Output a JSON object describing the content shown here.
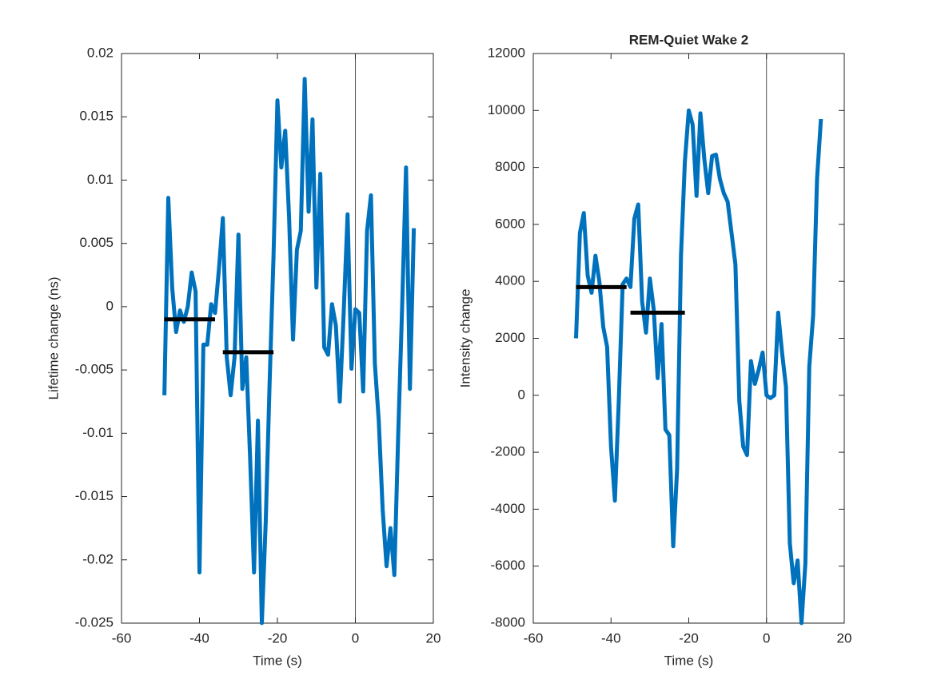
{
  "chart_data": [
    {
      "type": "line",
      "xlabel": "Time (s)",
      "ylabel": "Lifetime change (ns)",
      "xlim": [
        -60,
        20
      ],
      "xticks": [
        -60,
        -40,
        -20,
        0,
        20
      ],
      "ylim": [
        -0.025,
        0.02
      ],
      "yticks": [
        -0.025,
        -0.02,
        -0.015,
        -0.01,
        -0.005,
        0,
        0.005,
        0.01,
        0.015,
        0.02
      ],
      "color": "#0072bd",
      "x": [
        -49,
        -48,
        -47,
        -46,
        -45,
        -44,
        -43,
        -42,
        -41,
        -40,
        -39,
        -38,
        -37,
        -36,
        -35,
        -34,
        -33,
        -32,
        -31,
        -30,
        -29,
        -28,
        -27,
        -26,
        -25,
        -24,
        -23,
        -22,
        -21,
        -20,
        -19,
        -18,
        -17,
        -16,
        -15,
        -14,
        -13,
        -12,
        -11,
        -10,
        -9,
        -8,
        -7,
        -6,
        -5,
        -4,
        -3,
        -2,
        -1,
        0,
        1,
        2,
        3,
        4,
        5,
        6,
        7,
        8,
        9,
        10,
        11,
        12,
        13,
        14,
        15
      ],
      "values": [
        -0.007,
        0.0086,
        0.0015,
        -0.002,
        -0.0003,
        -0.0012,
        0,
        0.0027,
        0.0012,
        -0.021,
        -0.003,
        -0.003,
        0.0002,
        -0.0005,
        0.003,
        0.007,
        -0.004,
        -0.007,
        -0.004,
        0.0057,
        -0.0065,
        -0.004,
        -0.012,
        -0.021,
        -0.009,
        -0.025,
        -0.017,
        -0.006,
        0.004,
        0.0163,
        0.011,
        0.0139,
        0.007,
        -0.0026,
        0.0045,
        0.006,
        0.018,
        0.0075,
        0.0148,
        0.0015,
        0.0105,
        -0.0032,
        -0.0038,
        0.0002,
        -0.0015,
        -0.0075,
        -0.0005,
        0.0073,
        -0.0049,
        -0.0002,
        -0.0005,
        -0.0067,
        0.006,
        0.0088,
        -0.0045,
        -0.009,
        -0.016,
        -0.0205,
        -0.0175,
        -0.0212,
        -0.01,
        0,
        0.011,
        -0.0065,
        0.0062
      ],
      "segments": [
        {
          "x0": -49,
          "x1": -36,
          "y": -0.001
        },
        {
          "x0": -34,
          "x1": -21,
          "y": -0.0036
        }
      ],
      "segment_color": "#000000",
      "vlines": [
        0
      ]
    },
    {
      "type": "line",
      "title": "REM-Quiet Wake 2",
      "xlabel": "Time (s)",
      "ylabel": "Intensity change",
      "xlim": [
        -60,
        20
      ],
      "xticks": [
        -60,
        -40,
        -20,
        0,
        20
      ],
      "ylim": [
        -8000,
        12000
      ],
      "yticks": [
        -8000,
        -6000,
        -4000,
        -2000,
        0,
        2000,
        4000,
        6000,
        8000,
        10000,
        12000
      ],
      "color": "#0072bd",
      "x": [
        -49,
        -48,
        -47,
        -46,
        -45,
        -44,
        -43,
        -42,
        -41,
        -40,
        -39,
        -38,
        -37,
        -36,
        -35,
        -34,
        -33,
        -32,
        -31,
        -30,
        -29,
        -28,
        -27,
        -26,
        -25,
        -24,
        -23,
        -22,
        -21,
        -20,
        -19,
        -18,
        -17,
        -16,
        -15,
        -14,
        -13,
        -12,
        -11,
        -10,
        -9,
        -8,
        -7,
        -6,
        -5,
        -4,
        -3,
        -2,
        -1,
        0,
        1,
        2,
        3,
        4,
        5,
        6,
        7,
        8,
        9,
        10,
        11,
        12,
        13,
        14
      ],
      "values": [
        2000,
        5700,
        6400,
        4200,
        3600,
        4900,
        4000,
        2400,
        1700,
        -1800,
        -3700,
        -200,
        3900,
        4100,
        3800,
        6200,
        6700,
        3300,
        2200,
        4100,
        3000,
        600,
        2500,
        -1200,
        -1400,
        -5300,
        -2600,
        4900,
        8200,
        10000,
        9500,
        7000,
        9900,
        8300,
        7100,
        8400,
        8450,
        7600,
        7100,
        6800,
        5700,
        4600,
        -200,
        -1800,
        -2100,
        1200,
        400,
        900,
        1500,
        0,
        -100,
        0,
        2900,
        1500,
        300,
        -5200,
        -6600,
        -5800,
        -8000,
        -5900,
        1000,
        2800,
        7600,
        9700
      ],
      "segments": [
        {
          "x0": -49,
          "x1": -36,
          "y": 3800
        },
        {
          "x0": -35,
          "x1": -21,
          "y": 2900
        }
      ],
      "segment_color": "#000000",
      "vlines": [
        0
      ]
    }
  ]
}
